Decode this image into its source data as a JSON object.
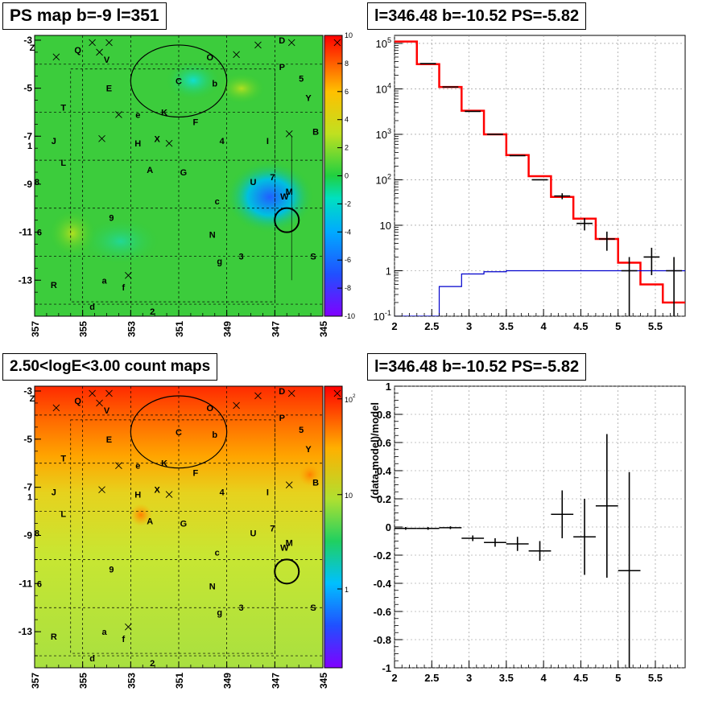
{
  "panels": {
    "top_left_title": "PS map b=-9 l=351",
    "top_right_title": "l=346.48 b=-10.52 PS=-5.82",
    "bottom_left_title": "2.50<logE<3.00 count maps",
    "bottom_right_title": "l=346.48 b=-10.52 PS=-5.82"
  },
  "colors": {
    "data": "#000000",
    "model": "#ff0000",
    "ps_component": "#0000cc",
    "ps_map_background": "#33cc33",
    "count_map_low": "#c8e632",
    "count_map_high": "#ff3300"
  },
  "chart_data": [
    {
      "type": "heatmap",
      "title": "PS map b=-9 l=351",
      "x_ticks": [
        "357",
        "355",
        "353",
        "351",
        "349",
        "347",
        "345"
      ],
      "y_ticks": [
        "-3",
        "-5",
        "-7",
        "-9",
        "-11",
        "-13"
      ],
      "xlim": [
        357,
        345
      ],
      "ylim": [
        -14.5,
        -2.8
      ],
      "colorbar": {
        "min": -10,
        "max": 10,
        "ticks": [
          "10",
          "8",
          "6",
          "4",
          "2",
          "0",
          "-2",
          "-4",
          "-6",
          "-8",
          "-10"
        ]
      },
      "source_labels": [
        "Z",
        "Q",
        "V",
        "O",
        "D",
        "P",
        "5",
        "E",
        "C",
        "b",
        "Y",
        "T",
        "e",
        "K",
        "F",
        "B",
        "J",
        "H",
        "X",
        "4",
        "I",
        "1",
        "L",
        "A",
        "G",
        "U",
        "7",
        "8",
        "c",
        "M",
        "W",
        "9",
        "6",
        "N",
        "g",
        "3",
        "S",
        "a",
        "f",
        "R",
        "d",
        "2"
      ]
    },
    {
      "type": "line",
      "title": "l=346.48 b=-10.52 PS=-5.82",
      "log_y": true,
      "xlim": [
        2.0,
        5.9
      ],
      "ylim": [
        0.1,
        150000
      ],
      "x_ticks": [
        "2",
        "2.5",
        "3",
        "3.5",
        "4",
        "4.5",
        "5",
        "5.5"
      ],
      "y_ticks": [
        "10^-1",
        "1",
        "10",
        "10^2",
        "10^3",
        "10^4",
        "10^5"
      ],
      "x_edges": [
        2.0,
        2.3,
        2.6,
        2.9,
        3.2,
        3.5,
        3.8,
        4.1,
        4.4,
        4.7,
        5.0,
        5.3,
        5.6,
        5.9
      ],
      "series": [
        {
          "values": [
            110000,
            35000,
            11000,
            3300,
            1000,
            350,
            120,
            42,
            14,
            5,
            1.5,
            0.5,
            0.2
          ]
        },
        {
          "values": [
            null,
            36000,
            11000,
            3200,
            1000,
            340,
            100,
            44,
            11,
            5,
            1,
            2,
            1
          ]
        },
        {
          "values": [
            0.1,
            0.1,
            0.45,
            0.85,
            0.95,
            1,
            1,
            1,
            1,
            1,
            1,
            1,
            1
          ]
        }
      ]
    },
    {
      "type": "heatmap",
      "title": "2.50<logE<3.00 count maps",
      "x_ticks": [
        "357",
        "355",
        "353",
        "351",
        "349",
        "347",
        "345"
      ],
      "y_ticks": [
        "-3",
        "-5",
        "-7",
        "-9",
        "-11",
        "-13"
      ],
      "xlim": [
        357,
        345
      ],
      "ylim": [
        -14.5,
        -2.8
      ],
      "colorbar": {
        "log": true,
        "ticks": [
          "10^2",
          "10",
          "1"
        ]
      },
      "source_labels": [
        "Z",
        "Q",
        "V",
        "O",
        "D",
        "P",
        "5",
        "E",
        "C",
        "b",
        "Y",
        "T",
        "e",
        "K",
        "F",
        "B",
        "J",
        "H",
        "X",
        "4",
        "I",
        "1",
        "L",
        "A",
        "G",
        "U",
        "7",
        "8",
        "c",
        "M",
        "W",
        "9",
        "6",
        "N",
        "g",
        "3",
        "S",
        "a",
        "f",
        "R",
        "d",
        "2"
      ]
    },
    {
      "type": "scatter",
      "title": "l=346.48 b=-10.52 PS=-5.82",
      "ylabel": "(data-model)/model",
      "xlim": [
        2.0,
        5.9
      ],
      "ylim": [
        -1,
        1
      ],
      "x_ticks": [
        "2",
        "2.5",
        "3",
        "3.5",
        "4",
        "4.5",
        "5",
        "5.5"
      ],
      "y_ticks": [
        "1",
        "0.8",
        "0.6",
        "0.4",
        "0.2",
        "0",
        "-0.2",
        "-0.4",
        "-0.6",
        "-0.8",
        "-1"
      ],
      "points": [
        {
          "x": 2.15,
          "y": -0.01,
          "xerr": 0.15,
          "yerr": 0.01
        },
        {
          "x": 2.45,
          "y": -0.01,
          "xerr": 0.15,
          "yerr": 0.01
        },
        {
          "x": 2.75,
          "y": -0.005,
          "xerr": 0.15,
          "yerr": 0.01
        },
        {
          "x": 3.05,
          "y": -0.08,
          "xerr": 0.15,
          "yerr": 0.02
        },
        {
          "x": 3.35,
          "y": -0.11,
          "xerr": 0.15,
          "yerr": 0.03
        },
        {
          "x": 3.65,
          "y": -0.12,
          "xerr": 0.15,
          "yerr": 0.05
        },
        {
          "x": 3.95,
          "y": -0.17,
          "xerr": 0.15,
          "yerr": 0.07
        },
        {
          "x": 4.25,
          "y": 0.09,
          "xerr": 0.15,
          "yerr": 0.17
        },
        {
          "x": 4.55,
          "y": -0.07,
          "xerr": 0.15,
          "yerr": 0.27
        },
        {
          "x": 4.85,
          "y": 0.15,
          "xerr": 0.15,
          "yerr": 0.51
        },
        {
          "x": 5.15,
          "y": -0.31,
          "xerr": 0.15,
          "yerr": 0.7
        }
      ]
    }
  ]
}
